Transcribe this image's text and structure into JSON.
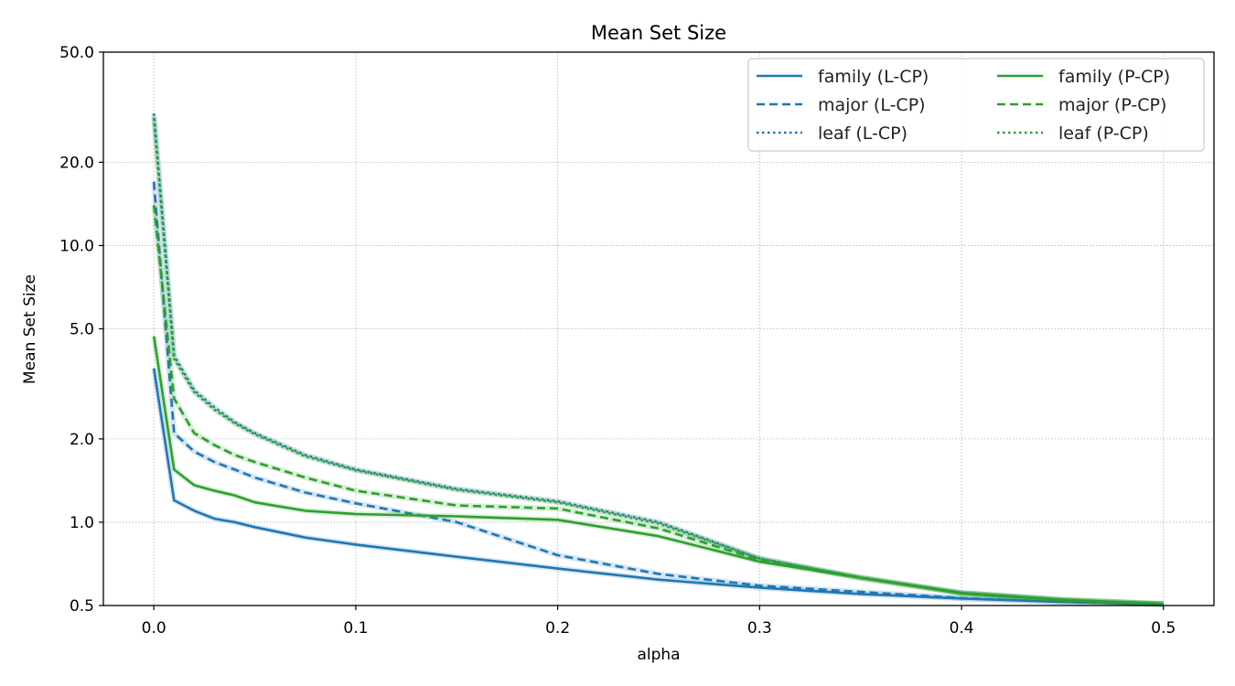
{
  "chart_data": {
    "type": "line",
    "title": "Mean Set Size",
    "xlabel": "alpha",
    "ylabel": "Mean Set Size",
    "yscale": "log",
    "xlim": [
      -0.025,
      0.525
    ],
    "ylim": [
      0.5,
      50.0
    ],
    "grid": true,
    "legend_position": "top-right",
    "xticks": [
      0.0,
      0.1,
      0.2,
      0.3,
      0.4,
      0.5
    ],
    "xtick_labels": [
      "0.0",
      "0.1",
      "0.2",
      "0.3",
      "0.4",
      "0.5"
    ],
    "yticks": [
      0.5,
      1.0,
      2.0,
      5.0,
      10.0,
      20.0,
      50.0
    ],
    "ytick_labels": [
      "0.5",
      "1.0",
      "2.0",
      "5.0",
      "10.0",
      "20.0",
      "50.0"
    ],
    "series": [
      {
        "name": "family (L-CP)",
        "color": "#1f77b4",
        "style": "solid",
        "x": [
          0.0,
          0.01,
          0.02,
          0.03,
          0.04,
          0.05,
          0.075,
          0.1,
          0.15,
          0.2,
          0.25,
          0.3,
          0.35,
          0.4,
          0.45,
          0.5
        ],
        "y": [
          3.6,
          1.2,
          1.1,
          1.03,
          1.0,
          0.96,
          0.88,
          0.83,
          0.75,
          0.68,
          0.62,
          0.58,
          0.55,
          0.53,
          0.515,
          0.505
        ]
      },
      {
        "name": "major (L-CP)",
        "color": "#1f77b4",
        "style": "dashed",
        "x": [
          0.0,
          0.01,
          0.02,
          0.03,
          0.04,
          0.05,
          0.075,
          0.1,
          0.15,
          0.2,
          0.25,
          0.3,
          0.35,
          0.4,
          0.45,
          0.5
        ],
        "y": [
          17.0,
          2.1,
          1.8,
          1.65,
          1.55,
          1.45,
          1.28,
          1.17,
          1.0,
          0.76,
          0.65,
          0.59,
          0.56,
          0.532,
          0.515,
          0.505
        ]
      },
      {
        "name": "leaf (L-CP)",
        "color": "#1f77b4",
        "style": "dotted",
        "x": [
          0.0,
          0.01,
          0.02,
          0.03,
          0.04,
          0.05,
          0.075,
          0.1,
          0.15,
          0.2,
          0.25,
          0.3,
          0.35,
          0.4,
          0.45,
          0.5
        ],
        "y": [
          30.0,
          4.0,
          3.0,
          2.6,
          2.3,
          2.1,
          1.75,
          1.55,
          1.32,
          1.19,
          1.0,
          0.74,
          0.63,
          0.556,
          0.525,
          0.507
        ]
      },
      {
        "name": "family (P-CP)",
        "color": "#2ca02c",
        "style": "solid",
        "x": [
          0.0,
          0.01,
          0.02,
          0.03,
          0.04,
          0.05,
          0.075,
          0.1,
          0.15,
          0.2,
          0.25,
          0.3,
          0.35,
          0.4,
          0.45,
          0.5
        ],
        "y": [
          4.7,
          1.55,
          1.36,
          1.3,
          1.25,
          1.18,
          1.1,
          1.07,
          1.05,
          1.02,
          0.89,
          0.72,
          0.63,
          0.553,
          0.523,
          0.506
        ]
      },
      {
        "name": "major (P-CP)",
        "color": "#2ca02c",
        "style": "dashed",
        "x": [
          0.0,
          0.01,
          0.02,
          0.03,
          0.04,
          0.05,
          0.075,
          0.1,
          0.15,
          0.2,
          0.25,
          0.3,
          0.35,
          0.4,
          0.45,
          0.5
        ],
        "y": [
          14.0,
          2.8,
          2.1,
          1.9,
          1.75,
          1.65,
          1.45,
          1.3,
          1.15,
          1.12,
          0.95,
          0.73,
          0.63,
          0.555,
          0.524,
          0.506
        ]
      },
      {
        "name": "leaf (P-CP)",
        "color": "#2ca02c",
        "style": "dotted",
        "x": [
          0.0,
          0.01,
          0.02,
          0.03,
          0.04,
          0.05,
          0.075,
          0.1,
          0.15,
          0.2,
          0.25,
          0.3,
          0.35,
          0.4,
          0.45,
          0.5
        ],
        "y": [
          29.0,
          3.9,
          2.95,
          2.55,
          2.28,
          2.08,
          1.73,
          1.54,
          1.31,
          1.18,
          0.99,
          0.74,
          0.63,
          0.556,
          0.525,
          0.507
        ]
      }
    ]
  }
}
